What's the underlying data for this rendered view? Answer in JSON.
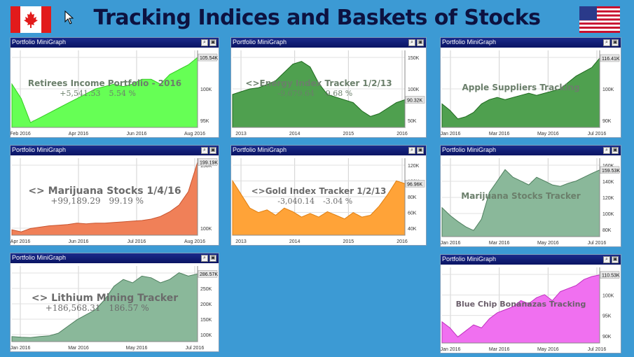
{
  "header": {
    "title": "Tracking Indices and Baskets of Stocks"
  },
  "flags": [
    {
      "name": "canada-flag"
    },
    {
      "name": "usa-flag"
    }
  ],
  "panels": [
    {
      "id": "retirees",
      "header_title": "Portfolio MiniGraph",
      "name": "Retirees Income Portfolio - 2016",
      "gain": "+5,541.53",
      "pct": "5.54 %",
      "color": "#66ff55",
      "stroke": "#33cc22",
      "text_color": "#6b7f6b",
      "name_size": 12,
      "stat_size": 11,
      "x_labels": [
        "Feb 2016",
        "Apr 2016",
        "Jun 2016",
        "Aug 2016"
      ],
      "y_labels": [
        "95K",
        "100K",
        "105K"
      ],
      "current_label": "105.54K",
      "chart_data": {
        "type": "area",
        "x": [
          0,
          5,
          10,
          15,
          20,
          25,
          30,
          35,
          40,
          45,
          50,
          55,
          60,
          65,
          70,
          75,
          80,
          85,
          90,
          95,
          100
        ],
        "values": [
          100,
          97,
          92,
          93,
          94,
          95,
          96,
          97,
          98,
          99,
          99.5,
          100,
          99.5,
          100,
          101,
          101,
          100,
          102,
          103,
          104,
          105.54
        ],
        "ylim": [
          91,
          107
        ]
      }
    },
    {
      "id": "energy",
      "header_title": "Portfolio MiniGraph",
      "name": "<>Energy Index Tracker 1/2/13",
      "gain": "-9,679.64",
      "pct": "-9.68 %",
      "color": "#4fa04f",
      "stroke": "#1e6a1e",
      "text_color": "#6b7f6b",
      "name_size": 12,
      "stat_size": 11,
      "x_labels": [
        "2013",
        "2014",
        "2015",
        "2016"
      ],
      "y_labels": [
        "50K",
        "100K",
        "150K"
      ],
      "current_label": "90.32K",
      "chart_data": {
        "type": "area",
        "x": [
          0,
          5,
          10,
          15,
          20,
          25,
          30,
          35,
          40,
          45,
          50,
          55,
          60,
          65,
          70,
          75,
          80,
          85,
          90,
          95,
          100
        ],
        "values": [
          100,
          105,
          110,
          112,
          118,
          125,
          140,
          155,
          160,
          150,
          120,
          100,
          95,
          90,
          85,
          70,
          60,
          65,
          75,
          85,
          90.32
        ],
        "ylim": [
          40,
          180
        ]
      }
    },
    {
      "id": "apple",
      "header_title": "Portfolio MiniGraph",
      "name": "Apple Suppliers Tracking",
      "gain": "",
      "pct": "",
      "color": "#4fa04f",
      "stroke": "#1e6a1e",
      "text_color": "#6b7f6b",
      "name_size": 12,
      "stat_size": 11,
      "x_labels": [
        "Jan 2016",
        "Mar 2016",
        "May 2016",
        "Jul 2016"
      ],
      "y_labels": [
        "90K",
        "100K",
        "110K"
      ],
      "current_label": "116.41K",
      "chart_data": {
        "type": "area",
        "x": [
          0,
          5,
          10,
          15,
          20,
          25,
          30,
          35,
          40,
          45,
          50,
          55,
          60,
          65,
          70,
          75,
          80,
          85,
          90,
          95,
          100
        ],
        "values": [
          95,
          92,
          88,
          89,
          91,
          95,
          97,
          98,
          97,
          98,
          99,
          100,
          99,
          100,
          101,
          102,
          105,
          108,
          110,
          112,
          116.41
        ],
        "ylim": [
          84,
          120
        ]
      }
    },
    {
      "id": "marijuana-basket",
      "header_title": "Portfolio MiniGraph",
      "name": "<> Marijuana Stocks 1/4/16",
      "gain": "+99,189.29",
      "pct": "99.19 %",
      "color": "#f08058",
      "stroke": "#c8532e",
      "text_color": "#6b6b6b",
      "name_size": 14,
      "stat_size": 12,
      "x_labels": [
        "Apr 2016",
        "Jun 2016",
        "Jul 2016",
        "Aug 2016"
      ],
      "y_labels": [
        "100K",
        "150K"
      ],
      "current_label": "199.19K",
      "chart_data": {
        "type": "area",
        "x": [
          0,
          5,
          10,
          15,
          20,
          25,
          30,
          35,
          40,
          45,
          50,
          55,
          60,
          65,
          70,
          75,
          80,
          85,
          90,
          95,
          100
        ],
        "values": [
          98,
          95,
          100,
          102,
          104,
          105,
          106,
          108,
          107,
          108,
          108,
          109,
          110,
          111,
          112,
          114,
          118,
          125,
          135,
          155,
          199.19
        ],
        "ylim": [
          90,
          205
        ]
      }
    },
    {
      "id": "gold",
      "header_title": "Portfolio MiniGraph",
      "name": "<>Gold Index Tracker 1/2/13",
      "gain": "-3,040.14",
      "pct": "-3.04 %",
      "color": "#ffa338",
      "stroke": "#e07f10",
      "text_color": "#6b6b6b",
      "name_size": 12,
      "stat_size": 11,
      "x_labels": [
        "2013",
        "2014",
        "2015",
        "2016"
      ],
      "y_labels": [
        "40K",
        "60K",
        "80K",
        "100K",
        "120K"
      ],
      "current_label": "96.96K",
      "chart_data": {
        "type": "area",
        "x": [
          0,
          5,
          10,
          15,
          20,
          25,
          30,
          35,
          40,
          45,
          50,
          55,
          60,
          65,
          70,
          75,
          80,
          85,
          90,
          95,
          100
        ],
        "values": [
          100,
          85,
          70,
          65,
          68,
          62,
          70,
          66,
          60,
          64,
          60,
          66,
          62,
          58,
          65,
          60,
          62,
          72,
          85,
          100,
          96.96
        ],
        "ylim": [
          40,
          125
        ]
      }
    },
    {
      "id": "marijuana-tracker",
      "header_title": "Portfolio MiniGraph",
      "name": "Marijuana Stocks Tracker",
      "gain": "",
      "pct": "",
      "color": "#8ab89a",
      "stroke": "#4e7f5e",
      "text_color": "#6b7f6b",
      "name_size": 12,
      "stat_size": 11,
      "x_labels": [
        "Jan 2016",
        "Mar 2016",
        "May 2016",
        "Jul 2016"
      ],
      "y_labels": [
        "80K",
        "100K",
        "120K",
        "140K",
        "160K"
      ],
      "current_label": "159.53K",
      "chart_data": {
        "type": "area",
        "x": [
          0,
          5,
          10,
          15,
          20,
          25,
          30,
          35,
          40,
          45,
          50,
          55,
          60,
          65,
          70,
          75,
          80,
          85,
          90,
          95,
          100
        ],
        "values": [
          110,
          100,
          92,
          85,
          80,
          95,
          130,
          145,
          160,
          150,
          145,
          140,
          150,
          145,
          140,
          138,
          142,
          145,
          150,
          155,
          159.53
        ],
        "ylim": [
          72,
          175
        ]
      }
    },
    {
      "id": "lithium",
      "header_title": "Portfolio MiniGraph",
      "name": "<> Lithium Mining Tracker",
      "gain": "+186,568.31",
      "pct": "186.57 %",
      "color": "#8ab89a",
      "stroke": "#4e7f5e",
      "text_color": "#6b6b6b",
      "name_size": 14,
      "stat_size": 12,
      "x_labels": [
        "Jan 2016",
        "Mar 2016",
        "May 2016",
        "Jul 2016"
      ],
      "y_labels": [
        "100K",
        "150K",
        "200K",
        "250K",
        "300K"
      ],
      "current_label": "286.57K",
      "chart_data": {
        "type": "area",
        "x": [
          0,
          5,
          10,
          15,
          20,
          25,
          30,
          35,
          40,
          45,
          50,
          55,
          60,
          65,
          70,
          75,
          80,
          85,
          90,
          95,
          100
        ],
        "values": [
          100,
          98,
          97,
          100,
          102,
          110,
          130,
          150,
          165,
          180,
          210,
          250,
          270,
          260,
          280,
          275,
          260,
          270,
          290,
          280,
          286.57
        ],
        "ylim": [
          85,
          310
        ]
      }
    },
    {
      "id": "bluechip",
      "header_title": "Portfolio MiniGraph",
      "name": "Blue Chip Bonanazas Tracking",
      "gain": "",
      "pct": "",
      "color": "#f070f0",
      "stroke": "#c030c0",
      "text_color": "#6b5f6b",
      "name_size": 11,
      "stat_size": 11,
      "x_labels": [
        "Jan 2016",
        "Mar 2016",
        "May 2016",
        "Jul 2016"
      ],
      "y_labels": [
        "90K",
        "95K",
        "100K",
        "105K"
      ],
      "current_label": "110.53K",
      "chart_data": {
        "type": "area",
        "x": [
          0,
          5,
          10,
          15,
          20,
          25,
          30,
          35,
          40,
          45,
          50,
          55,
          60,
          65,
          70,
          75,
          80,
          85,
          90,
          95,
          100
        ],
        "values": [
          95,
          93,
          90,
          92,
          94,
          93,
          96,
          98,
          99,
          100,
          102,
          101,
          103,
          104,
          102,
          105,
          106,
          107,
          109,
          110,
          110.53
        ],
        "ylim": [
          88,
          113
        ]
      }
    }
  ]
}
